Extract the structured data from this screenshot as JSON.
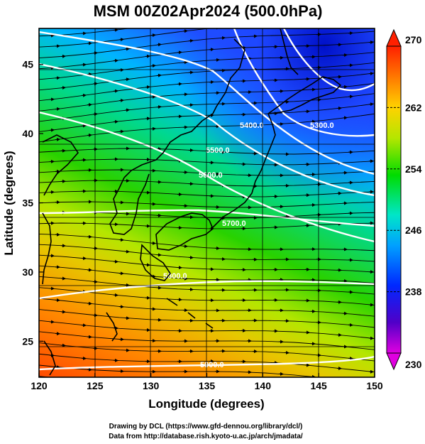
{
  "title": "MSM 00Z02Apr2024 (500.0hPa)",
  "xaxis": {
    "label": "Longitude (degrees)",
    "ticks": [
      "120",
      "125",
      "130",
      "135",
      "140",
      "145",
      "150"
    ],
    "range": [
      120,
      150
    ]
  },
  "yaxis": {
    "label": "Latitude  (degrees)",
    "ticks": [
      "25",
      "30",
      "35",
      "40",
      "45"
    ],
    "range": [
      22.4,
      47.6
    ]
  },
  "colorbar": {
    "ticks": [
      "270",
      "262",
      "254",
      "246",
      "238",
      "230"
    ],
    "range": [
      230,
      270
    ]
  },
  "contours": [
    {
      "label": "5300.0"
    },
    {
      "label": "5400.0"
    },
    {
      "label": "5500.0"
    },
    {
      "label": "5600.0"
    },
    {
      "label": "5700.0"
    },
    {
      "label": "5800.0"
    },
    {
      "label": "5900.0"
    }
  ],
  "credits": {
    "line1": "Drawing by DCL (https://www.gfd-dennou.org/library/dcl/)",
    "line2": "Data from http://database.rish.kyoto-u.ac.jp/arch/jmadata/"
  }
}
